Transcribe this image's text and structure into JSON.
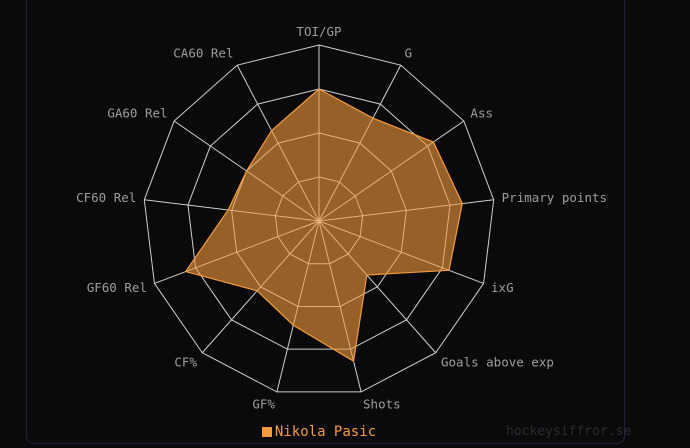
{
  "chart_data": {
    "type": "radar",
    "axes": [
      "TOI/GP",
      "G",
      "Ass",
      "Primary points",
      "ixG",
      "Goals above exp",
      "Shots",
      "GF%",
      "CF%",
      "GF60 Rel",
      "CF60 Rel",
      "GA60 Rel",
      "CA60 Rel"
    ],
    "range": [
      0,
      1
    ],
    "rings": 4,
    "series": [
      {
        "name": "Nikola Pasic",
        "color": "#f39a3d",
        "values": [
          0.75,
          0.66,
          0.79,
          0.82,
          0.79,
          0.41,
          0.82,
          0.61,
          0.53,
          0.81,
          0.52,
          0.5,
          0.58
        ]
      }
    ],
    "legend_position": "bottom"
  },
  "watermark": "hockeysiffror.se"
}
